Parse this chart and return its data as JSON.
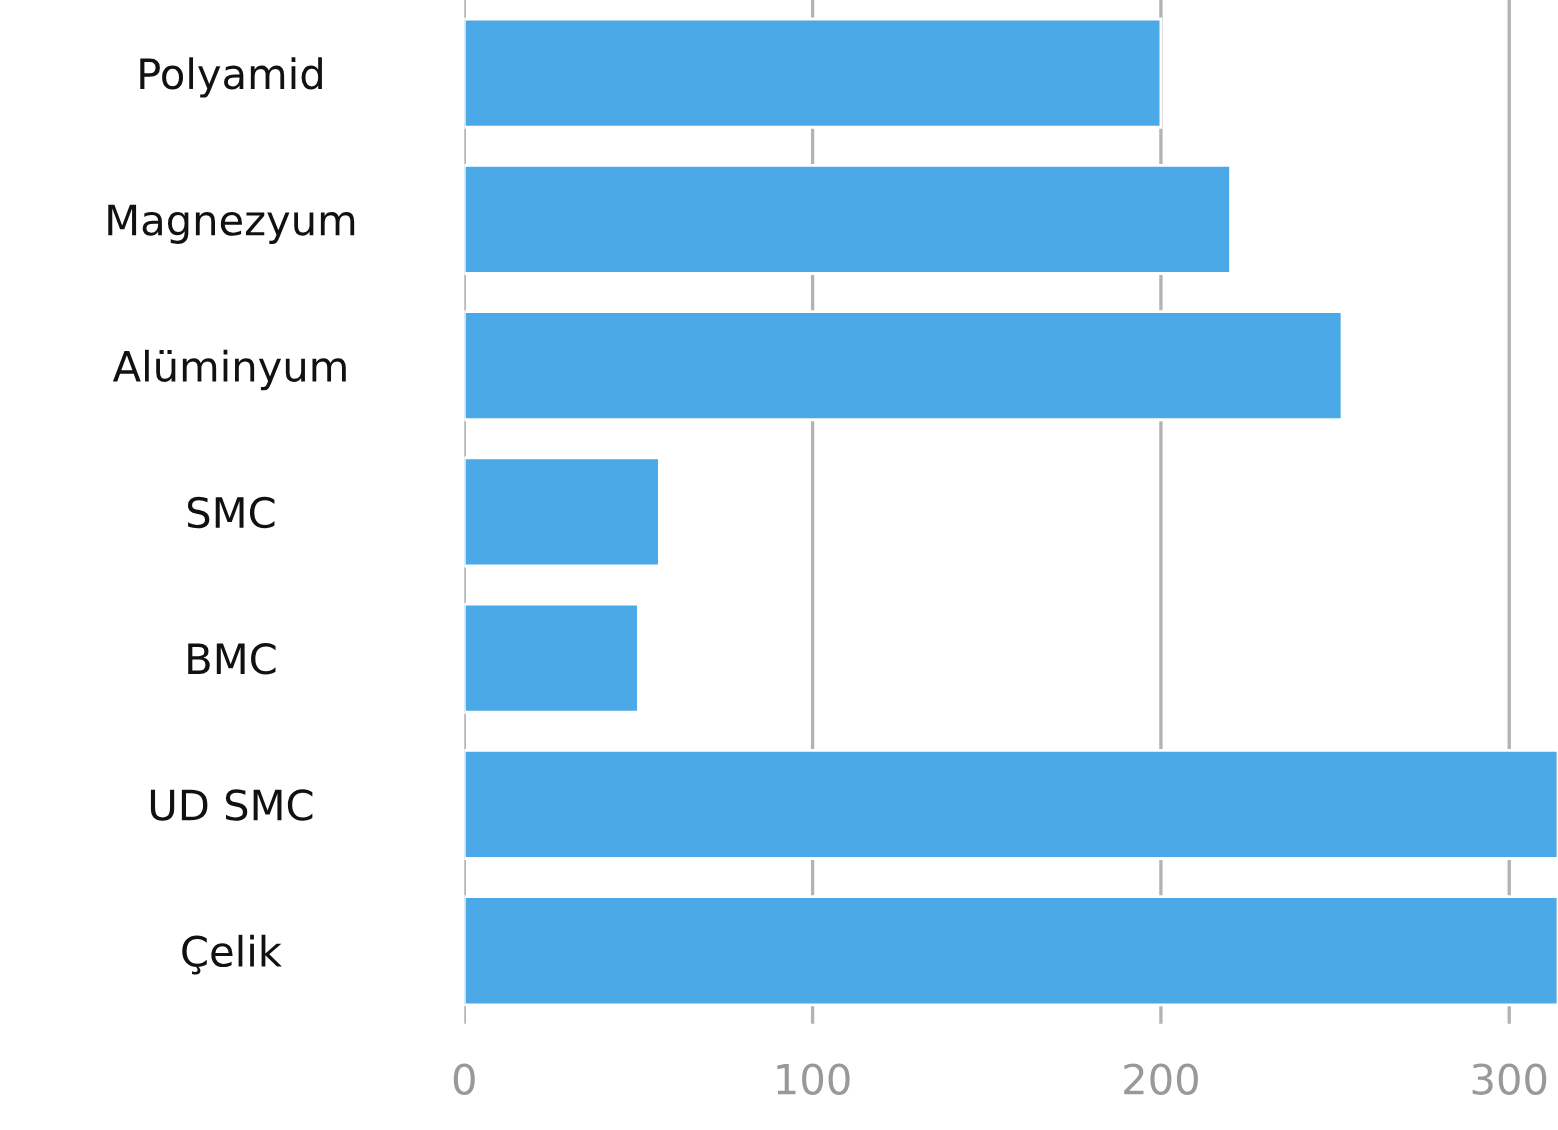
{
  "chart_data": {
    "type": "bar",
    "orientation": "horizontal",
    "categories": [
      "Polyamid",
      "Magnezyum",
      "Alüminyum",
      "SMC",
      "BMC",
      "UD SMC",
      "Çelik"
    ],
    "values": [
      200,
      220,
      252,
      56,
      50,
      314,
      314
    ],
    "color": "#4ba9e7",
    "xlim": [
      0,
      314
    ],
    "xticks": [
      0,
      100,
      200,
      300
    ],
    "grid": "x"
  }
}
